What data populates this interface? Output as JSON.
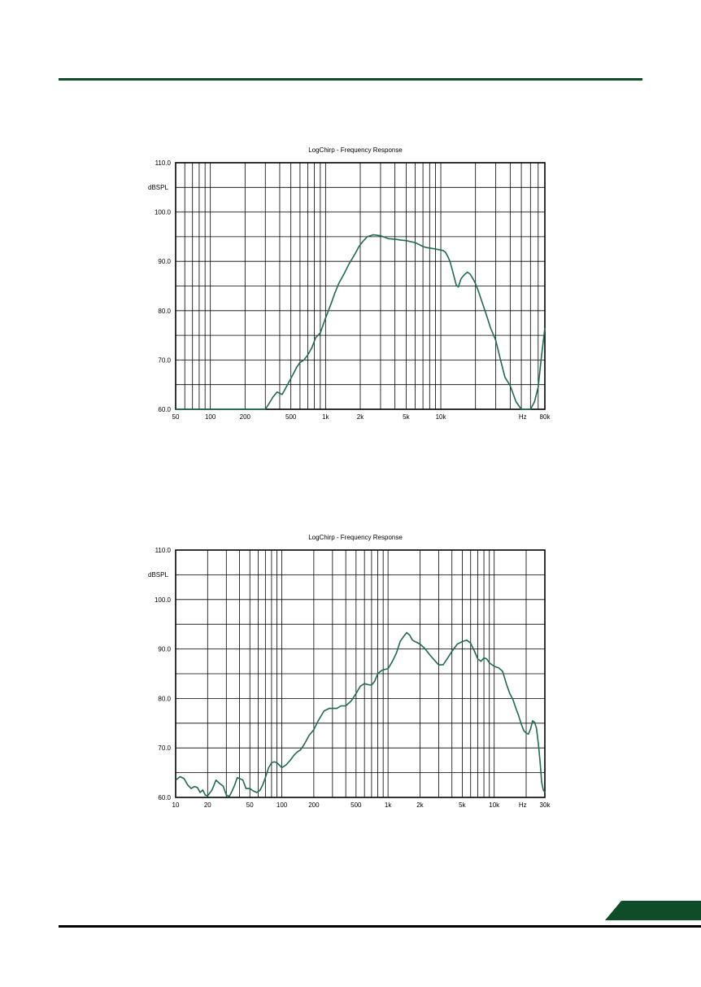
{
  "page": {
    "accent_color": "#0f4d2a",
    "curve_color": "#1f6b4d"
  },
  "chart_data": [
    {
      "type": "line",
      "title": "LogChirp - Frequency Response",
      "ylabel": "dBSPL",
      "xlabel": "Hz",
      "x_scale": "log",
      "xlim": [
        50,
        80000
      ],
      "ylim": [
        60,
        110
      ],
      "grid": true,
      "x_ticks": [
        "50",
        "100",
        "200",
        "500",
        "1k",
        "2k",
        "5k",
        "10k",
        "Hz",
        "80k"
      ],
      "y_ticks": [
        "60.0",
        "70.0",
        "80.0",
        "90.0",
        "100.0",
        "110.0"
      ],
      "series": [
        {
          "x": [
            50,
            280,
            300,
            330,
            350,
            380,
            420,
            480,
            520,
            560,
            600,
            650,
            700,
            760,
            820,
            900,
            1000,
            1100,
            1200,
            1300,
            1450,
            1600,
            1800,
            1950,
            2100,
            2300,
            2600,
            3000,
            3500,
            4000,
            4500,
            5000,
            5500,
            6000,
            6500,
            7000,
            7500,
            8000,
            8500,
            9000,
            9500,
            10000,
            10500,
            11000,
            11500,
            12000,
            12500,
            13000,
            13600,
            14200,
            15000,
            16000,
            17000,
            18000,
            19000,
            20000,
            21000,
            23000,
            25000,
            27000,
            30000,
            33000,
            36000,
            40000,
            45000,
            50000,
            55000,
            60000,
            65000,
            70000,
            75000,
            80000
          ],
          "y": [
            60,
            60,
            60,
            61.5,
            62.5,
            63.5,
            63,
            65.5,
            67,
            68.5,
            69.5,
            70,
            71,
            72.5,
            74.5,
            75.5,
            78.5,
            81,
            83.5,
            85.5,
            87.5,
            89.5,
            91.5,
            93,
            94,
            95,
            95.4,
            95.2,
            94.6,
            94.5,
            94.3,
            94.2,
            94,
            93.8,
            93.4,
            93,
            92.8,
            92.7,
            92.6,
            92.5,
            92.4,
            92.3,
            92.2,
            91.8,
            91,
            90,
            88.5,
            87,
            85.2,
            84.8,
            86.5,
            87.3,
            87.8,
            87.4,
            86.5,
            85.5,
            84.2,
            81.5,
            79,
            76.5,
            74,
            70,
            66.5,
            64.8,
            61.5,
            60,
            60,
            60,
            61.5,
            64.5,
            71,
            76.5
          ]
        }
      ]
    },
    {
      "type": "line",
      "title": "LogChirp - Frequency Response",
      "ylabel": "dBSPL",
      "xlabel": "Hz",
      "x_scale": "log",
      "xlim": [
        10,
        30000
      ],
      "ylim": [
        60,
        110
      ],
      "grid": true,
      "x_ticks": [
        "10",
        "20",
        "50",
        "100",
        "200",
        "500",
        "1k",
        "2k",
        "5k",
        "10k",
        "Hz",
        "30k"
      ],
      "y_ticks": [
        "60.0",
        "70.0",
        "80.0",
        "90.0",
        "100.0",
        "110.0"
      ],
      "series": [
        {
          "x": [
            10,
            11,
            12,
            13,
            14,
            15,
            16,
            17,
            18,
            19,
            20,
            22,
            24,
            26,
            28,
            30,
            32,
            34,
            36,
            38,
            40,
            43,
            46,
            50,
            54,
            58,
            62,
            66,
            70,
            75,
            80,
            85,
            90,
            95,
            100,
            110,
            120,
            130,
            140,
            150,
            160,
            170,
            180,
            200,
            220,
            250,
            280,
            300,
            330,
            360,
            400,
            450,
            500,
            550,
            600,
            650,
            700,
            750,
            800,
            850,
            900,
            1000,
            1100,
            1200,
            1300,
            1400,
            1500,
            1600,
            1700,
            1800,
            2000,
            2200,
            2500,
            2800,
            3000,
            3300,
            3600,
            4000,
            4500,
            5000,
            5500,
            6000,
            6500,
            7000,
            7500,
            8000,
            8500,
            9000,
            10000,
            11000,
            12000,
            13000,
            14000,
            15000,
            16000,
            17000,
            18000,
            19000,
            20000,
            21000,
            22000,
            23000,
            24000,
            25000,
            26000,
            27000,
            28000,
            29000,
            30000
          ],
          "y": [
            63.5,
            64.2,
            63.8,
            62.5,
            61.8,
            62.2,
            62,
            61,
            61.5,
            60.5,
            60.3,
            61.5,
            63.5,
            62.8,
            62.3,
            60.5,
            60.2,
            61.3,
            62.5,
            64,
            63.8,
            63.5,
            61.8,
            61.8,
            61.3,
            61,
            61.4,
            62.5,
            64,
            66,
            67,
            67.2,
            67,
            66.5,
            66,
            66.6,
            67.5,
            68.5,
            69.2,
            69.6,
            70.5,
            71.5,
            72.5,
            73.7,
            75.5,
            77.5,
            78,
            78,
            78,
            78.5,
            78.5,
            79.5,
            81,
            82.5,
            83,
            82.8,
            82.7,
            83.5,
            85,
            85.5,
            85.8,
            86,
            87.5,
            89.2,
            91.5,
            92.5,
            93.3,
            92.8,
            91.8,
            91.5,
            91,
            90.2,
            88.7,
            87.5,
            86.8,
            86.8,
            88,
            89.5,
            91,
            91.5,
            91.8,
            91.2,
            89.6,
            88,
            87.5,
            88.2,
            88,
            87.2,
            86.5,
            86.2,
            85.5,
            83,
            81,
            79.8,
            78,
            76.5,
            74.8,
            73.5,
            73,
            72.8,
            73.8,
            75.5,
            75.2,
            74,
            71,
            67.5,
            63,
            61.5,
            61
          ]
        }
      ]
    }
  ]
}
